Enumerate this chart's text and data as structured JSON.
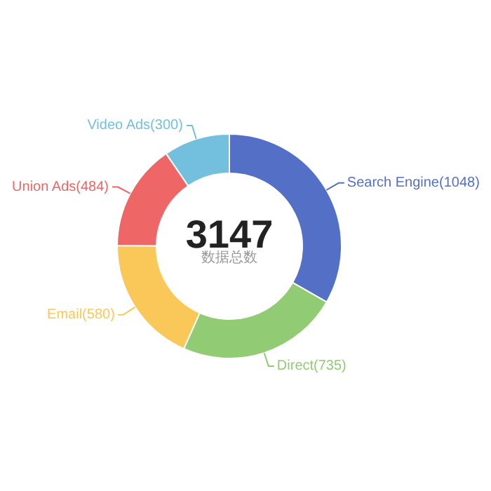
{
  "chart_data": {
    "type": "donut",
    "categories": [
      "Search Engine",
      "Direct",
      "Email",
      "Union Ads",
      "Video Ads"
    ],
    "values": [
      1048,
      735,
      580,
      484,
      300
    ],
    "colors": [
      "#5470c6",
      "#91cc75",
      "#fac858",
      "#ee6666",
      "#73c0de"
    ],
    "value_labels": [
      "(1048)",
      "(735)",
      "(580)",
      "(484)",
      "(300)"
    ],
    "annotations": [
      "3147",
      "数据总数"
    ]
  }
}
